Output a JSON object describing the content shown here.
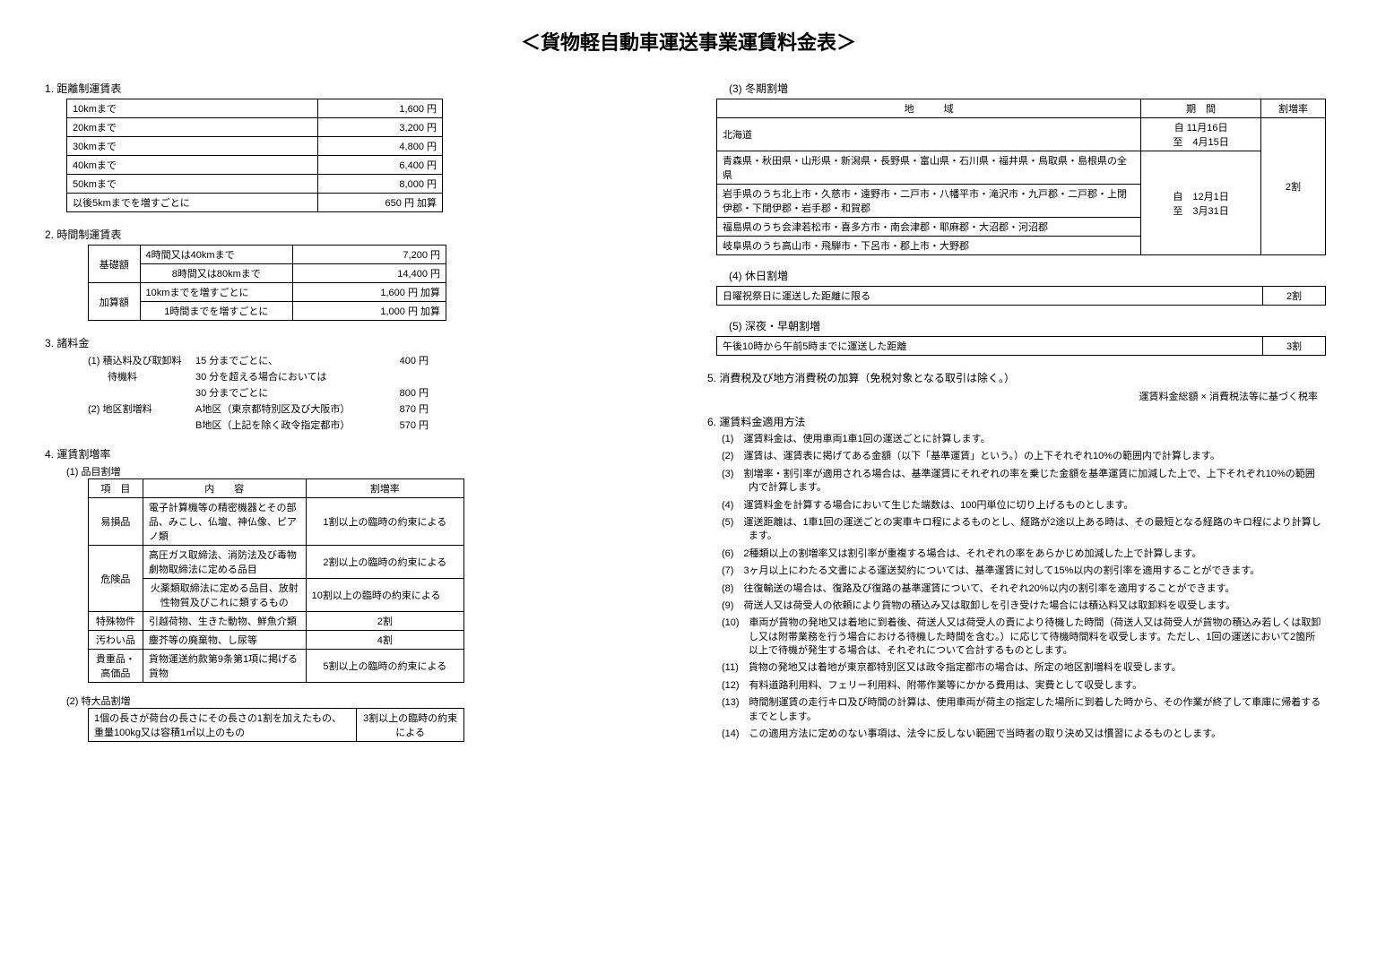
{
  "title": "＜貨物軽自動車運送事業運賃料金表＞",
  "section1": {
    "heading": "1. 距離制運賃表",
    "rows": [
      [
        "10kmまで",
        "1,600 円"
      ],
      [
        "20kmまで",
        "3,200 円"
      ],
      [
        "30kmまで",
        "4,800 円"
      ],
      [
        "40kmまで",
        "6,400 円"
      ],
      [
        "50kmまで",
        "8,000 円"
      ],
      [
        "以後5kmまでを増すごとに",
        "650 円 加算"
      ]
    ]
  },
  "section2": {
    "heading": "2. 時間制運賃表",
    "rows": [
      [
        "基礎額",
        "4時間又は40kmまで",
        "7,200 円"
      ],
      [
        "",
        "8時間又は80kmまで",
        "14,400 円"
      ],
      [
        "加算額",
        "10kmまでを増すごとに",
        "1,600 円 加算"
      ],
      [
        "",
        "1時間までを増すごとに",
        "1,000 円 加算"
      ]
    ]
  },
  "section3": {
    "heading": "3. 諸料金",
    "lines": [
      [
        "(1) 積込料及び取卸料",
        "15 分までごとに、",
        "400 円"
      ],
      [
        "　　待機料",
        "30 分を超える場合においては",
        ""
      ],
      [
        "",
        "30 分までごとに",
        "800 円"
      ],
      [
        "(2) 地区割増料",
        "A地区（東京都特別区及び大阪市）",
        "870 円"
      ],
      [
        "",
        "B地区（上記を除く政令指定都市）",
        "570 円"
      ]
    ]
  },
  "section4": {
    "heading": "4. 運賃割増率",
    "sub1": "(1) 品目割増",
    "header": [
      "項　目",
      "内　　容",
      "割増率"
    ],
    "rows": [
      [
        "易損品",
        "電子計算機等の精密機器とその部品、みこし、仏壇、神仏像、ピアノ類",
        "1割以上の臨時の約束による"
      ],
      [
        "危険品",
        "高圧ガス取締法、消防法及び毒物劇物取締法に定める品目",
        "2割以上の臨時の約束による"
      ],
      [
        "",
        "火薬類取締法に定める品目、放射性物質及びこれに類するもの",
        "10割以上の臨時の約束による"
      ],
      [
        "特殊物件",
        "引越荷物、生きた動物、鮮魚介類",
        "2割"
      ],
      [
        "汚わい品",
        "塵芥等の廃棄物、し尿等",
        "4割"
      ],
      [
        "貴重品・高価品",
        "貨物運送約款第9条第1項に掲げる貨物",
        "5割以上の臨時の約束による"
      ]
    ],
    "sub2": "(2) 特大品割増",
    "spec": [
      "1個の長さが荷台の長さにその長さの1割を加えたもの、重量100kg又は容積1㎥以上のもの",
      "3割以上の臨時の約束による"
    ]
  },
  "winter": {
    "heading": "(3) 冬期割増",
    "header": [
      "地　　　域",
      "期　間",
      "割増率"
    ],
    "rows": [
      [
        "北海道",
        "自 11月16日\n至　4月15日",
        ""
      ],
      [
        "青森県・秋田県・山形県・新潟県・長野県・富山県・石川県・福井県・鳥取県・島根県の全県",
        "",
        ""
      ],
      [
        "岩手県のうち北上市・久慈市・遠野市・二戸市・八幡平市・滝沢市・九戸郡・二戸郡・上閉伊郡・下閉伊郡・岩手郡・和賀郡",
        "自　12月1日\n至　3月31日",
        "2割"
      ],
      [
        "福島県のうち会津若松市・喜多方市・南会津郡・耶麻郡・大沼郡・河沼郡",
        "",
        ""
      ],
      [
        "岐阜県のうち高山市・飛騨市・下呂市・郡上市・大野郡",
        "",
        ""
      ]
    ]
  },
  "holiday": {
    "heading": "(4) 休日割増",
    "row": [
      "日曜祝祭日に運送した距離に限る",
      "2割"
    ]
  },
  "night": {
    "heading": "(5) 深夜・早朝割増",
    "row": [
      "午後10時から午前5時までに運送した距離",
      "3割"
    ]
  },
  "section5": {
    "heading": "5. 消費税及び地方消費税の加算（免税対象となる取引は除く。）",
    "note": "運賃料金総額 × 消費税法等に基づく税率"
  },
  "section6": {
    "heading": "6. 運賃料金適用方法",
    "items": [
      "(1)　運賃料金は、使用車両1車1回の運送ごとに計算します。",
      "(2)　運賃は、運賃表に掲げてある金額（以下「基準運賃」という。）の上下それぞれ10%の範囲内で計算します。",
      "(3)　割増率・割引率が適用される場合は、基準運賃にそれぞれの率を乗じた金額を基準運賃に加減した上で、上下それぞれ10%の範囲内で計算します。",
      "(4)　運賃料金を計算する場合において生じた端数は、100円単位に切り上げるものとします。",
      "(5)　運送距離は、1車1回の運送ごとの実車キロ程によるものとし、経路が2途以上ある時は、その最短となる経路のキロ程により計算します。",
      "(6)　2種類以上の割増率又は割引率が重複する場合は、それぞれの率をあらかじめ加減した上で計算します。",
      "(7)　3ヶ月以上にわたる文書による運送契約については、基準運賃に対して15%以内の割引率を適用することができます。",
      "(8)　往復輸送の場合は、復路及び復路の基準運賃について、それぞれ20%以内の割引率を適用することができます。",
      "(9)　荷送人又は荷受人の依頼により貨物の積込み又は取卸しを引き受けた場合には積込料又は取卸料を収受します。",
      "(10)　車両が貨物の発地又は着地に到着後、荷送人又は荷受人の責により待機した時間（荷送人又は荷受人が貨物の積込み若しくは取卸し又は附帯業務を行う場合における待機した時間を含む。）に応じて待機時間料を収受します。ただし、1回の運送において2箇所以上で待機が発生する場合は、それぞれについて合計するものとします。",
      "(11)　貨物の発地又は着地が東京都特別区又は政令指定都市の場合は、所定の地区割増料を収受します。",
      "(12)　有料道路利用料、フェリー利用料、附帯作業等にかかる費用は、実費として収受します。",
      "(13)　時間制運賃の走行キロ及び時間の計算は、使用車両が荷主の指定した場所に到着した時から、その作業が終了して車庫に帰着するまでとします。",
      "(14)　この適用方法に定めのない事項は、法令に反しない範囲で当時者の取り決め又は慣習によるものとします。"
    ]
  }
}
